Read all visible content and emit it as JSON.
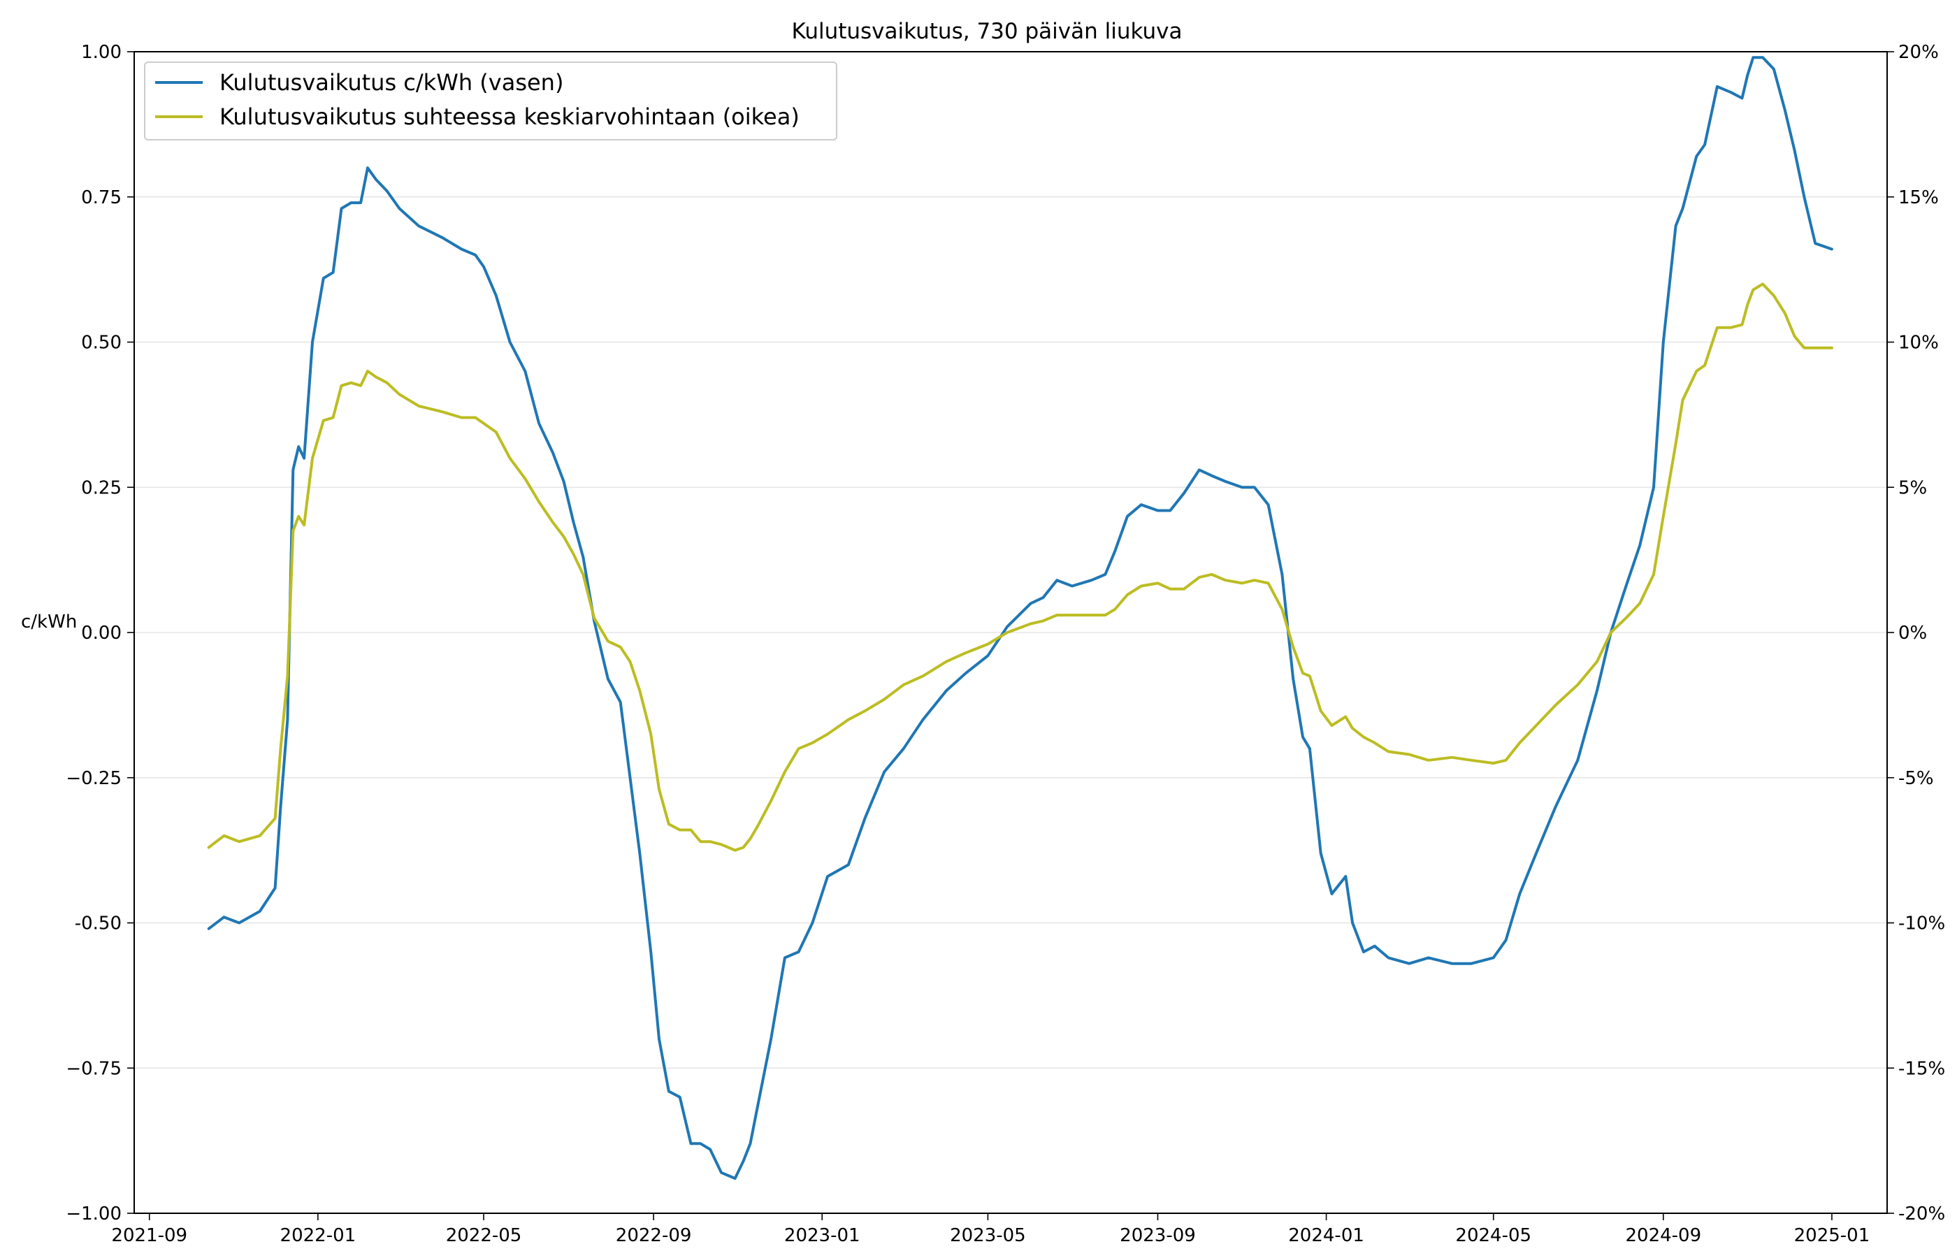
{
  "chart_data": {
    "type": "line",
    "title": "Kulutusvaikutus, 730 päivän liukuva",
    "ylabel_left": "c/kWh",
    "ylim_left": [
      -1.0,
      1.0
    ],
    "ylim_right": [
      -20,
      20
    ],
    "xlim": [
      "2021-08-21",
      "2025-02-10"
    ],
    "grid": "horizontal",
    "legend_position": "upper-left",
    "x_tick_labels": [
      "2021-09",
      "2022-01",
      "2022-05",
      "2022-09",
      "2023-01",
      "2023-05",
      "2023-09",
      "2024-01",
      "2024-05",
      "2024-09",
      "2025-01"
    ],
    "y_left_tick_labels": [
      "1.00",
      "0.75",
      "0.50",
      "0.25",
      "0.00",
      "−0.25",
      "-0.50",
      "−0.75",
      "−1.00"
    ],
    "y_left_tick_values": [
      1.0,
      0.75,
      0.5,
      0.25,
      0.0,
      -0.25,
      -0.5,
      -0.75,
      -1.0
    ],
    "y_right_tick_labels": [
      "20%",
      "15%",
      "10%",
      "5%",
      "0%",
      "-5%",
      "-10%",
      "-15%",
      "-20%"
    ],
    "y_right_tick_values": [
      20,
      15,
      10,
      5,
      0,
      -5,
      -10,
      -15,
      -20
    ],
    "series": [
      {
        "name": "Kulutusvaikutus c/kWh (vasen)",
        "axis": "left",
        "color": "#1f77b4",
        "x": [
          "2021-10-14",
          "2021-10-25",
          "2021-11-05",
          "2021-11-20",
          "2021-12-01",
          "2021-12-05",
          "2021-12-10",
          "2021-12-14",
          "2021-12-18",
          "2021-12-22",
          "2021-12-28",
          "2022-01-05",
          "2022-01-12",
          "2022-01-18",
          "2022-01-25",
          "2022-02-01",
          "2022-02-06",
          "2022-02-12",
          "2022-02-20",
          "2022-03-01",
          "2022-03-15",
          "2022-04-01",
          "2022-04-15",
          "2022-04-25",
          "2022-05-01",
          "2022-05-10",
          "2022-05-20",
          "2022-05-31",
          "2022-06-10",
          "2022-06-20",
          "2022-06-28",
          "2022-07-05",
          "2022-07-12",
          "2022-07-20",
          "2022-07-30",
          "2022-08-08",
          "2022-08-15",
          "2022-08-22",
          "2022-08-30",
          "2022-09-05",
          "2022-09-12",
          "2022-09-20",
          "2022-09-28",
          "2022-10-05",
          "2022-10-12",
          "2022-10-20",
          "2022-10-30",
          "2022-11-05",
          "2022-11-10",
          "2022-11-15",
          "2022-11-25",
          "2022-12-05",
          "2022-12-15",
          "2022-12-25",
          "2023-01-05",
          "2023-01-20",
          "2023-02-01",
          "2023-02-15",
          "2023-03-01",
          "2023-03-15",
          "2023-04-01",
          "2023-04-15",
          "2023-05-01",
          "2023-05-15",
          "2023-06-01",
          "2023-06-10",
          "2023-06-20",
          "2023-07-01",
          "2023-07-15",
          "2023-07-25",
          "2023-08-01",
          "2023-08-10",
          "2023-08-20",
          "2023-09-01",
          "2023-09-10",
          "2023-09-20",
          "2023-10-01",
          "2023-10-10",
          "2023-10-20",
          "2023-11-01",
          "2023-11-10",
          "2023-11-20",
          "2023-11-30",
          "2023-12-08",
          "2023-12-15",
          "2023-12-20",
          "2023-12-28",
          "2024-01-05",
          "2024-01-15",
          "2024-01-20",
          "2024-01-28",
          "2024-02-05",
          "2024-02-15",
          "2024-03-01",
          "2024-03-15",
          "2024-04-01",
          "2024-04-15",
          "2024-05-01",
          "2024-05-10",
          "2024-05-20",
          "2024-06-01",
          "2024-06-15",
          "2024-07-01",
          "2024-07-15",
          "2024-07-25",
          "2024-08-05",
          "2024-08-15",
          "2024-08-25",
          "2024-09-01",
          "2024-09-10",
          "2024-09-15",
          "2024-09-25",
          "2024-10-01",
          "2024-10-10",
          "2024-10-20",
          "2024-10-28",
          "2024-11-01",
          "2024-11-05",
          "2024-11-12",
          "2024-11-20",
          "2024-11-28",
          "2024-12-05",
          "2024-12-12",
          "2024-12-20",
          "2025-01-01"
        ],
        "values": [
          -0.51,
          -0.49,
          -0.5,
          -0.48,
          -0.44,
          -0.3,
          -0.15,
          0.28,
          0.32,
          0.3,
          0.5,
          0.61,
          0.62,
          0.73,
          0.74,
          0.74,
          0.8,
          0.78,
          0.76,
          0.73,
          0.7,
          0.68,
          0.66,
          0.65,
          0.63,
          0.58,
          0.5,
          0.45,
          0.36,
          0.31,
          0.26,
          0.19,
          0.13,
          0.02,
          -0.08,
          -0.12,
          -0.25,
          -0.38,
          -0.55,
          -0.7,
          -0.79,
          -0.8,
          -0.88,
          -0.88,
          -0.89,
          -0.93,
          -0.94,
          -0.91,
          -0.88,
          -0.82,
          -0.7,
          -0.56,
          -0.55,
          -0.5,
          -0.42,
          -0.4,
          -0.32,
          -0.24,
          -0.2,
          -0.15,
          -0.1,
          -0.07,
          -0.04,
          0.01,
          0.05,
          0.06,
          0.09,
          0.08,
          0.09,
          0.1,
          0.14,
          0.2,
          0.22,
          0.21,
          0.21,
          0.24,
          0.28,
          0.27,
          0.26,
          0.25,
          0.25,
          0.22,
          0.1,
          -0.08,
          -0.18,
          -0.2,
          -0.38,
          -0.45,
          -0.42,
          -0.5,
          -0.55,
          -0.54,
          -0.56,
          -0.57,
          -0.56,
          -0.57,
          -0.57,
          -0.56,
          -0.53,
          -0.45,
          -0.38,
          -0.3,
          -0.22,
          -0.1,
          0.0,
          0.08,
          0.15,
          0.25,
          0.5,
          0.7,
          0.73,
          0.82,
          0.84,
          0.94,
          0.93,
          0.92,
          0.96,
          0.99,
          0.99,
          0.97,
          0.9,
          0.83,
          0.75,
          0.67,
          0.66
        ]
      },
      {
        "name": "Kulutusvaikutus suhteessa keskiarvohintaan (oikea)",
        "axis": "right",
        "color": "#bcbd22",
        "x": [
          "2021-10-14",
          "2021-10-25",
          "2021-11-05",
          "2021-11-20",
          "2021-12-01",
          "2021-12-05",
          "2021-12-10",
          "2021-12-14",
          "2021-12-18",
          "2021-12-22",
          "2021-12-28",
          "2022-01-05",
          "2022-01-12",
          "2022-01-18",
          "2022-01-25",
          "2022-02-01",
          "2022-02-06",
          "2022-02-12",
          "2022-02-20",
          "2022-03-01",
          "2022-03-15",
          "2022-04-01",
          "2022-04-15",
          "2022-04-25",
          "2022-05-01",
          "2022-05-10",
          "2022-05-20",
          "2022-05-31",
          "2022-06-10",
          "2022-06-20",
          "2022-06-28",
          "2022-07-05",
          "2022-07-12",
          "2022-07-20",
          "2022-07-30",
          "2022-08-08",
          "2022-08-15",
          "2022-08-22",
          "2022-08-30",
          "2022-09-05",
          "2022-09-12",
          "2022-09-20",
          "2022-09-28",
          "2022-10-05",
          "2022-10-12",
          "2022-10-20",
          "2022-10-30",
          "2022-11-05",
          "2022-11-10",
          "2022-11-15",
          "2022-11-25",
          "2022-12-05",
          "2022-12-15",
          "2022-12-25",
          "2023-01-05",
          "2023-01-20",
          "2023-02-01",
          "2023-02-15",
          "2023-03-01",
          "2023-03-15",
          "2023-04-01",
          "2023-04-15",
          "2023-05-01",
          "2023-05-15",
          "2023-06-01",
          "2023-06-10",
          "2023-06-20",
          "2023-07-01",
          "2023-07-15",
          "2023-07-25",
          "2023-08-01",
          "2023-08-10",
          "2023-08-20",
          "2023-09-01",
          "2023-09-10",
          "2023-09-20",
          "2023-10-01",
          "2023-10-10",
          "2023-10-20",
          "2023-11-01",
          "2023-11-10",
          "2023-11-20",
          "2023-11-30",
          "2023-12-08",
          "2023-12-15",
          "2023-12-20",
          "2023-12-28",
          "2024-01-05",
          "2024-01-15",
          "2024-01-20",
          "2024-01-28",
          "2024-02-05",
          "2024-02-15",
          "2024-03-01",
          "2024-03-15",
          "2024-04-01",
          "2024-04-15",
          "2024-05-01",
          "2024-05-10",
          "2024-05-20",
          "2024-06-01",
          "2024-06-15",
          "2024-07-01",
          "2024-07-15",
          "2024-07-25",
          "2024-08-05",
          "2024-08-15",
          "2024-08-25",
          "2024-09-01",
          "2024-09-10",
          "2024-09-15",
          "2024-09-25",
          "2024-10-01",
          "2024-10-10",
          "2024-10-20",
          "2024-10-28",
          "2024-11-01",
          "2024-11-05",
          "2024-11-12",
          "2024-11-20",
          "2024-11-28",
          "2024-12-05",
          "2024-12-12",
          "2024-12-20",
          "2025-01-01"
        ],
        "values": [
          -7.4,
          -7.0,
          -7.2,
          -7.0,
          -6.4,
          -4.0,
          -1.5,
          3.5,
          4.0,
          3.7,
          6.0,
          7.3,
          7.4,
          8.5,
          8.6,
          8.5,
          9.0,
          8.8,
          8.6,
          8.2,
          7.8,
          7.6,
          7.4,
          7.4,
          7.2,
          6.9,
          6.0,
          5.3,
          4.5,
          3.8,
          3.3,
          2.7,
          2.0,
          0.5,
          -0.3,
          -0.5,
          -1.0,
          -2.0,
          -3.5,
          -5.4,
          -6.6,
          -6.8,
          -6.8,
          -7.2,
          -7.2,
          -7.3,
          -7.5,
          -7.4,
          -7.1,
          -6.7,
          -5.8,
          -4.8,
          -4.0,
          -3.8,
          -3.5,
          -3.0,
          -2.7,
          -2.3,
          -1.8,
          -1.5,
          -1.0,
          -0.7,
          -0.4,
          0.0,
          0.3,
          0.4,
          0.6,
          0.6,
          0.6,
          0.6,
          0.8,
          1.3,
          1.6,
          1.7,
          1.5,
          1.5,
          1.9,
          2.0,
          1.8,
          1.7,
          1.8,
          1.7,
          0.8,
          -0.5,
          -1.4,
          -1.5,
          -2.7,
          -3.2,
          -2.9,
          -3.3,
          -3.6,
          -3.8,
          -4.1,
          -4.2,
          -4.4,
          -4.3,
          -4.4,
          -4.5,
          -4.4,
          -3.8,
          -3.2,
          -2.5,
          -1.8,
          -1.0,
          0.0,
          0.5,
          1.0,
          2.0,
          4.0,
          6.5,
          8.0,
          9.0,
          9.2,
          10.5,
          10.5,
          10.6,
          11.3,
          11.8,
          12.0,
          11.6,
          11.0,
          10.2,
          9.8,
          9.8,
          9.8
        ]
      }
    ]
  }
}
